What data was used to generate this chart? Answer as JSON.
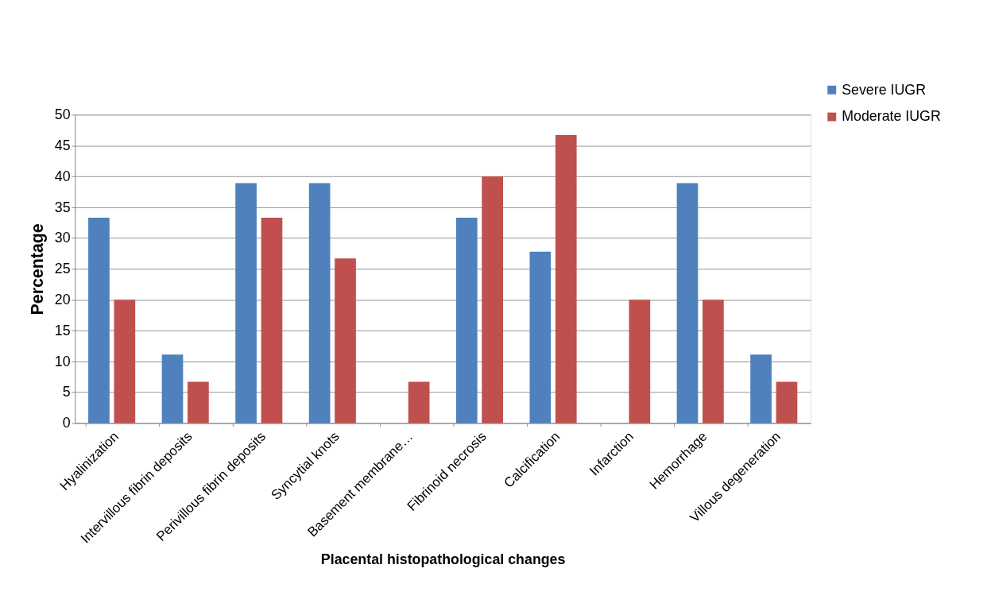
{
  "chart_data": {
    "type": "bar",
    "xlabel": "Placental histopathological changes",
    "ylabel": "Percentage",
    "categories": [
      "Hyalinization",
      "Intervillous fibrin deposits",
      "Perivillous fibrin deposits",
      "Syncytial knots",
      "Basement membrane…",
      "Fibrinoid necrosis",
      "Calcification",
      "Infarction",
      "Hemorrhage",
      "Villous degeneration"
    ],
    "series": [
      {
        "name": "Severe IUGR",
        "color": "#4f81bd",
        "values": [
          33.3,
          11.1,
          38.9,
          38.9,
          0,
          33.3,
          27.8,
          0,
          38.9,
          11.1
        ]
      },
      {
        "name": "Moderate IUGR",
        "color": "#c0504d",
        "values": [
          20,
          6.7,
          33.3,
          26.7,
          6.7,
          40,
          46.7,
          20,
          20,
          6.7
        ]
      }
    ],
    "ylim": [
      0,
      50
    ],
    "yticks": [
      0,
      5,
      10,
      15,
      20,
      25,
      30,
      35,
      40,
      45,
      50
    ],
    "grid": "y",
    "legend": "top right"
  }
}
